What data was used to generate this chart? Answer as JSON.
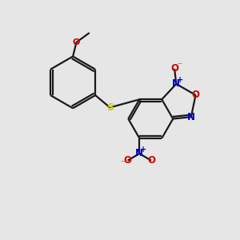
{
  "background_color": "#e6e6e6",
  "bond_color": "#1a1a1a",
  "sulfur_color": "#cccc00",
  "nitrogen_color": "#0000cc",
  "oxygen_color": "#cc0000",
  "figsize": [
    3.0,
    3.0
  ],
  "dpi": 100,
  "xlim": [
    0,
    10
  ],
  "ylim": [
    0,
    10
  ]
}
